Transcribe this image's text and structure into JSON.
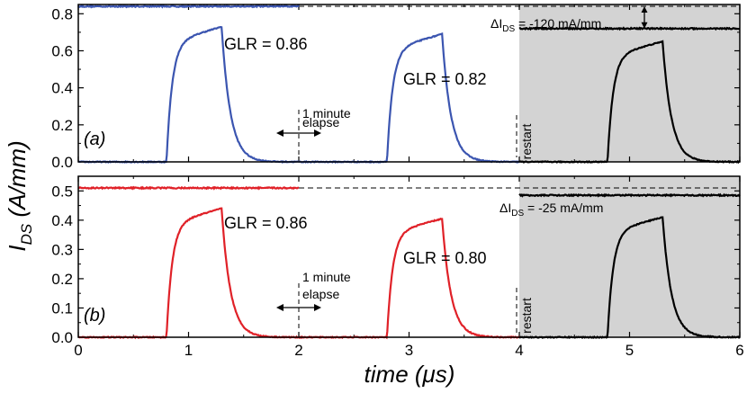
{
  "figure": {
    "ylabel": "I",
    "ylabel_sub": "DS",
    "ylabel_units": " (A/mm)",
    "xlabel": "time (μs)"
  },
  "colors": {
    "panel_a": "#3b55b0",
    "panel_b": "#e02128",
    "restart": "#000000",
    "shade": "#d3d3d3"
  },
  "chart_data": [
    {
      "type": "line",
      "panel": "(a)",
      "xlim": [
        0,
        6
      ],
      "ylim": [
        0,
        0.85
      ],
      "x_ticks": [
        "0",
        "1",
        "2",
        "3",
        "4",
        "5",
        "6"
      ],
      "y_ticks": [
        "0.0",
        "0.2",
        "0.4",
        "0.6",
        "0.8"
      ],
      "y_tick_values": [
        0,
        0.2,
        0.4,
        0.6,
        0.8
      ],
      "shaded_region": [
        4,
        6
      ],
      "reference_level": 0.84,
      "restart_level": 0.72,
      "pulses": [
        {
          "x_on": 0.8,
          "x_off": 1.3,
          "peak": 0.73,
          "label": "GLR = 0.86"
        },
        {
          "x_on": 2.8,
          "x_off": 3.3,
          "peak": 0.69,
          "label": "GLR = 0.82"
        },
        {
          "x_on": 4.8,
          "x_off": 5.3,
          "peak": 0.65,
          "label": ""
        }
      ],
      "annotations": {
        "delta_prefix": "ΔI",
        "delta_sub": "DS",
        "delta_value": " = -120 mA/mm",
        "elapse_line1": "1 minute",
        "elapse_line2": "elapse",
        "restart": "restart"
      }
    },
    {
      "type": "line",
      "panel": "(b)",
      "xlim": [
        0,
        6
      ],
      "ylim": [
        0,
        0.55
      ],
      "x_ticks": [
        "0",
        "1",
        "2",
        "3",
        "4",
        "5",
        "6"
      ],
      "y_ticks": [
        "0.0",
        "0.1",
        "0.2",
        "0.3",
        "0.4",
        "0.5"
      ],
      "y_tick_values": [
        0,
        0.1,
        0.2,
        0.3,
        0.4,
        0.5
      ],
      "shaded_region": [
        4,
        6
      ],
      "reference_level": 0.51,
      "restart_level": 0.485,
      "pulses": [
        {
          "x_on": 0.8,
          "x_off": 1.3,
          "peak": 0.44,
          "label": "GLR = 0.86"
        },
        {
          "x_on": 2.8,
          "x_off": 3.3,
          "peak": 0.405,
          "label": "GLR = 0.80"
        },
        {
          "x_on": 4.8,
          "x_off": 5.3,
          "peak": 0.41,
          "label": ""
        }
      ],
      "annotations": {
        "delta_prefix": "ΔI",
        "delta_sub": "DS",
        "delta_value": " = -25 mA/mm",
        "elapse_line1": "1 minute",
        "elapse_line2": "elapse",
        "restart": "restart"
      }
    }
  ]
}
